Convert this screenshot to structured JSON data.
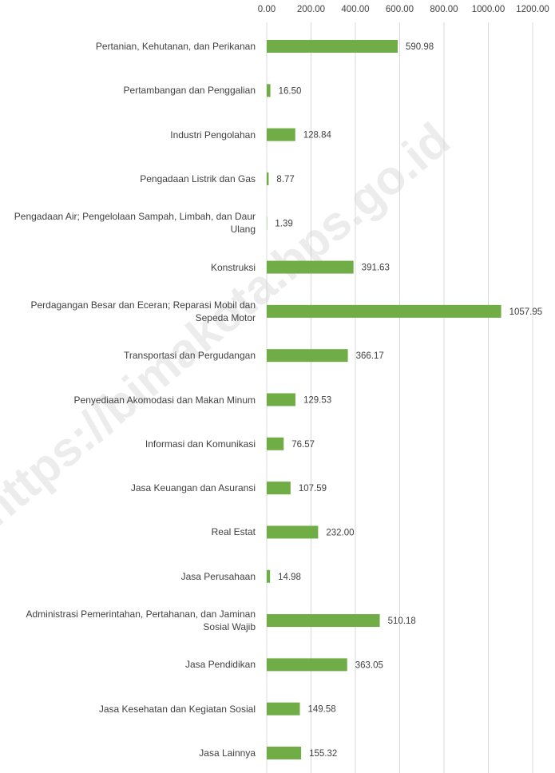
{
  "chart_data": {
    "type": "bar",
    "orientation": "horizontal",
    "color": "#70ad47",
    "grid": true,
    "watermark": "https://bimakota.bps.go.id",
    "categories": [
      "Pertanian, Kehutanan, dan Perikanan",
      "Pertambangan dan Penggalian",
      "Industri Pengolahan",
      "Pengadaan Listrik dan Gas",
      "Pengadaan Air; Pengelolaan Sampah, Limbah, dan Daur Ulang",
      "Konstruksi",
      "Perdagangan Besar dan Eceran; Reparasi Mobil dan Sepeda Motor",
      "Transportasi dan Pergudangan",
      "Penyediaan Akomodasi dan Makan Minum",
      "Informasi dan Komunikasi",
      "Jasa Keuangan dan Asuransi",
      "Real Estat",
      "Jasa Perusahaan",
      "Administrasi Pemerintahan, Pertahanan, dan Jaminan Sosial Wajib",
      "Jasa Pendidikan",
      "Jasa Kesehatan dan Kegiatan Sosial",
      "Jasa Lainnya"
    ],
    "values": [
      590.98,
      16.5,
      128.84,
      8.77,
      1.39,
      391.63,
      1057.95,
      366.17,
      129.53,
      76.57,
      107.59,
      232,
      14.98,
      510.18,
      363.05,
      149.58,
      155.32
    ],
    "value_labels": [
      "590.98",
      "16.50",
      "128.84",
      "8.77",
      "1.39",
      "391.63",
      "1057.95",
      "366.17",
      "129.53",
      "76.57",
      "107.59",
      "232.00",
      "14.98",
      "510.18",
      "363.05",
      "149.58",
      "155.32"
    ],
    "xlim": [
      0,
      1200
    ],
    "xticks": [
      {
        "value": 0,
        "label": "0.00"
      },
      {
        "value": 200,
        "label": "200.00"
      },
      {
        "value": 400,
        "label": "400.00"
      },
      {
        "value": 600,
        "label": "600.00"
      },
      {
        "value": 800,
        "label": "800.00"
      },
      {
        "value": 1000,
        "label": "1000.00"
      },
      {
        "value": 1200,
        "label": "1200.00"
      }
    ]
  }
}
